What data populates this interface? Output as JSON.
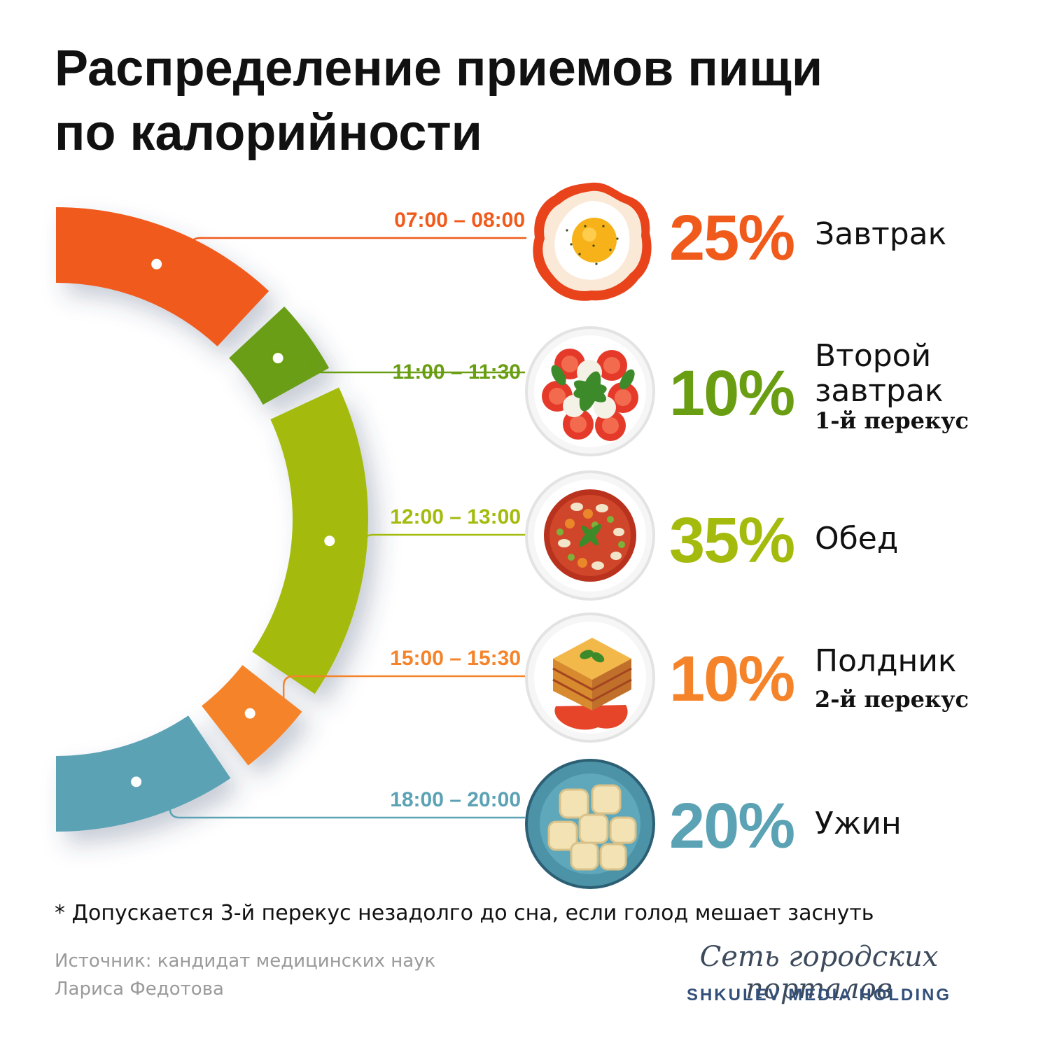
{
  "title": {
    "line1": "Распределение приемов пищи",
    "line2": "по калорийности"
  },
  "chart_data": {
    "type": "pie",
    "values": [
      25,
      10,
      35,
      10,
      20
    ],
    "categories": [
      "Завтрак",
      "Второй завтрак 1-й перекус",
      "Обед",
      "Полдник 2-й перекус",
      "Ужин"
    ],
    "colors": [
      "#f05a1a",
      "#6a9e12",
      "#a4bb0e",
      "#f5832a",
      "#5aa2b4"
    ]
  },
  "meals": [
    {
      "time": "07:00 – 08:00",
      "percent": "25%",
      "name": "Завтрак",
      "sub": "",
      "color": "#f05a1a",
      "icon": "fried-egg-icon"
    },
    {
      "time": "11:00 – 11:30",
      "percent": "10%",
      "name": "Второй",
      "name2": "завтрак",
      "sub": "1-й перекус",
      "color": "#6a9e12",
      "icon": "caprese-salad-icon"
    },
    {
      "time": "12:00 – 13:00",
      "percent": "35%",
      "name": "Обед",
      "sub": "",
      "color": "#a4bb0e",
      "icon": "soup-icon"
    },
    {
      "time": "15:00 – 15:30",
      "percent": "10%",
      "name": "Полдник",
      "sub": "2-й перекус",
      "color": "#f5832a",
      "icon": "lasagna-icon"
    },
    {
      "time": "18:00 – 20:00",
      "percent": "20%",
      "name": "Ужин",
      "sub": "",
      "color": "#5aa2b4",
      "icon": "ravioli-icon"
    }
  ],
  "note": "* Допускается 3-й перекус незадолго до сна, если голод мешает заснуть",
  "source": {
    "line1": "Источник: кандидат медицинских наук",
    "line2": "Лариса Федотова"
  },
  "brand": {
    "line1": "Сеть городских порталов",
    "line2": "SHKULEV MEDIA HOLDING"
  }
}
